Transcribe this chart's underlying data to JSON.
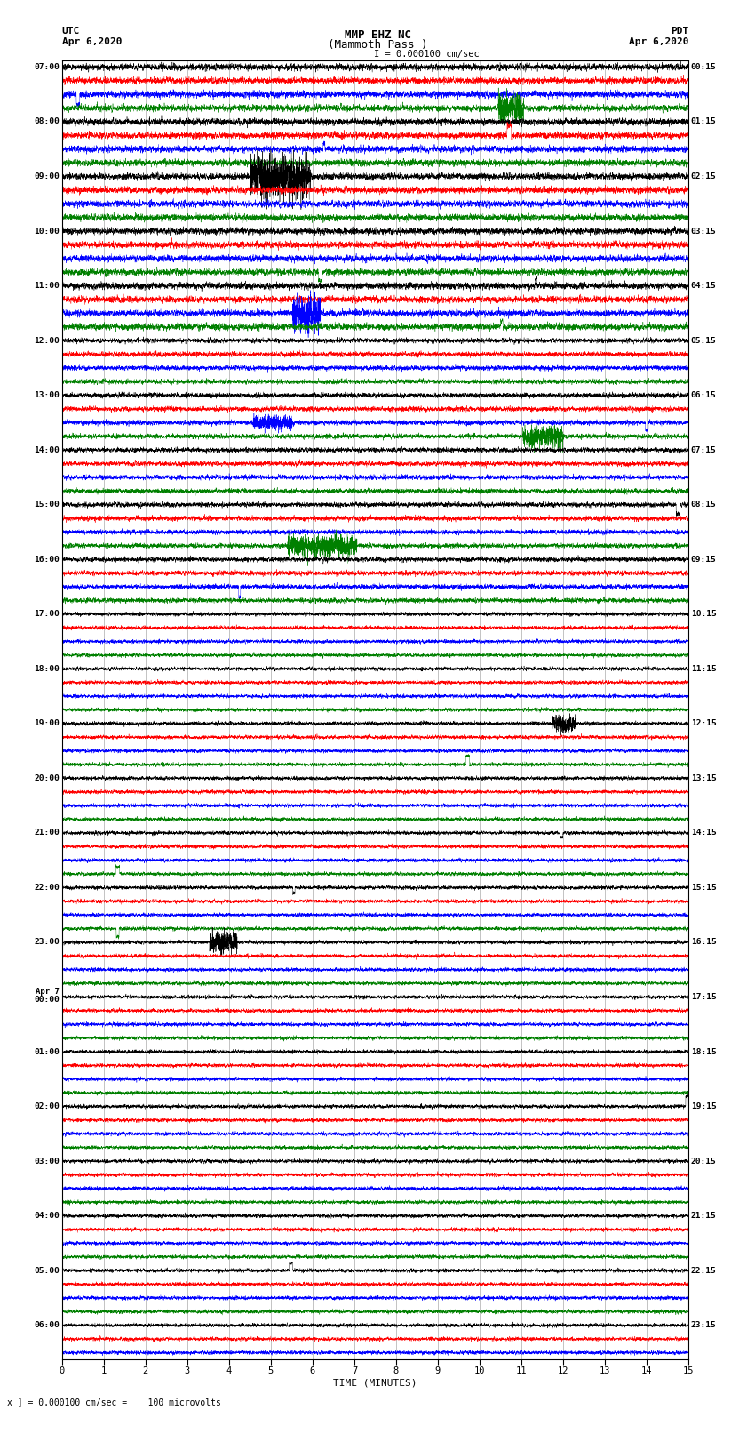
{
  "title_line1": "MMP EHZ NC",
  "title_line2": "(Mammoth Pass )",
  "scale_text": "I = 0.000100 cm/sec",
  "utc_label": "UTC",
  "utc_date": "Apr 6,2020",
  "pdt_label": "PDT",
  "pdt_date": "Apr 6,2020",
  "bottom_label": "TIME (MINUTES)",
  "bottom_note": "x ] = 0.000100 cm/sec =    100 microvolts",
  "left_times": [
    "07:00",
    "",
    "",
    "",
    "08:00",
    "",
    "",
    "",
    "09:00",
    "",
    "",
    "",
    "10:00",
    "",
    "",
    "",
    "11:00",
    "",
    "",
    "",
    "12:00",
    "",
    "",
    "",
    "13:00",
    "",
    "",
    "",
    "14:00",
    "",
    "",
    "",
    "15:00",
    "",
    "",
    "",
    "16:00",
    "",
    "",
    "",
    "17:00",
    "",
    "",
    "",
    "18:00",
    "",
    "",
    "",
    "19:00",
    "",
    "",
    "",
    "20:00",
    "",
    "",
    "",
    "21:00",
    "",
    "",
    "",
    "22:00",
    "",
    "",
    "",
    "23:00",
    "",
    "",
    "",
    "Apr 7\n00:00",
    "",
    "",
    "",
    "01:00",
    "",
    "",
    "",
    "02:00",
    "",
    "",
    "",
    "03:00",
    "",
    "",
    "",
    "04:00",
    "",
    "",
    "",
    "05:00",
    "",
    "",
    "",
    "06:00",
    "",
    ""
  ],
  "right_times": [
    "00:15",
    "",
    "",
    "",
    "01:15",
    "",
    "",
    "",
    "02:15",
    "",
    "",
    "",
    "03:15",
    "",
    "",
    "",
    "04:15",
    "",
    "",
    "",
    "05:15",
    "",
    "",
    "",
    "06:15",
    "",
    "",
    "",
    "07:15",
    "",
    "",
    "",
    "08:15",
    "",
    "",
    "",
    "09:15",
    "",
    "",
    "",
    "10:15",
    "",
    "",
    "",
    "11:15",
    "",
    "",
    "",
    "12:15",
    "",
    "",
    "",
    "13:15",
    "",
    "",
    "",
    "14:15",
    "",
    "",
    "",
    "15:15",
    "",
    "",
    "",
    "16:15",
    "",
    "",
    "",
    "17:15",
    "",
    "",
    "",
    "18:15",
    "",
    "",
    "",
    "19:15",
    "",
    "",
    "",
    "20:15",
    "",
    "",
    "",
    "21:15",
    "",
    "",
    "",
    "22:15",
    "",
    "",
    "",
    "23:15",
    "",
    ""
  ],
  "trace_colors": [
    "black",
    "red",
    "blue",
    "green"
  ],
  "n_rows": 95,
  "n_minutes": 15,
  "samples_per_minute": 600,
  "background_color": "white",
  "grid_color": "#888888",
  "fig_width": 8.5,
  "fig_height": 16.13
}
